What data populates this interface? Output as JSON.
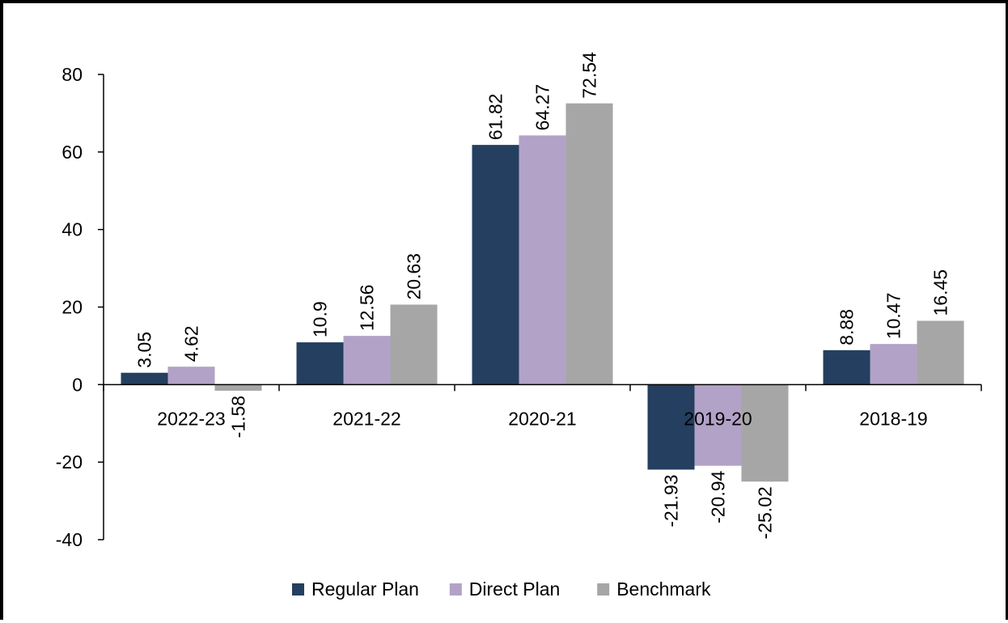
{
  "chart_data": {
    "type": "bar",
    "title": "",
    "xlabel": "",
    "ylabel": "",
    "categories": [
      "2022-23",
      "2021-22",
      "2020-21",
      "2019-20",
      "2018-19"
    ],
    "series": [
      {
        "name": "Regular Plan",
        "color": "#243f60",
        "values": [
          3.05,
          10.9,
          61.82,
          -21.93,
          8.88
        ]
      },
      {
        "name": "Direct Plan",
        "color": "#b3a2c7",
        "values": [
          4.62,
          12.56,
          64.27,
          -20.94,
          10.47
        ]
      },
      {
        "name": "Benchmark",
        "color": "#a6a6a6",
        "values": [
          -1.58,
          20.63,
          72.54,
          -25.02,
          16.45
        ]
      }
    ],
    "data_labels": [
      [
        "3.05",
        "10.9",
        "61.82",
        "-21.93",
        "8.88"
      ],
      [
        "4.62",
        "12.56",
        "64.27",
        "-20.94",
        "10.47"
      ],
      [
        "-1.58",
        "20.63",
        "72.54",
        "-25.02",
        "16.45"
      ]
    ],
    "ylim": [
      -40,
      80
    ],
    "yticks": [
      80,
      60,
      40,
      20,
      0,
      -20,
      -40
    ],
    "ytick_labels": [
      "80",
      "60",
      "40",
      "20",
      "0",
      "-20",
      "-40"
    ],
    "grid": false,
    "legend": {
      "position": "bottom",
      "entries": [
        "Regular Plan",
        "Direct Plan",
        "Benchmark"
      ]
    }
  }
}
